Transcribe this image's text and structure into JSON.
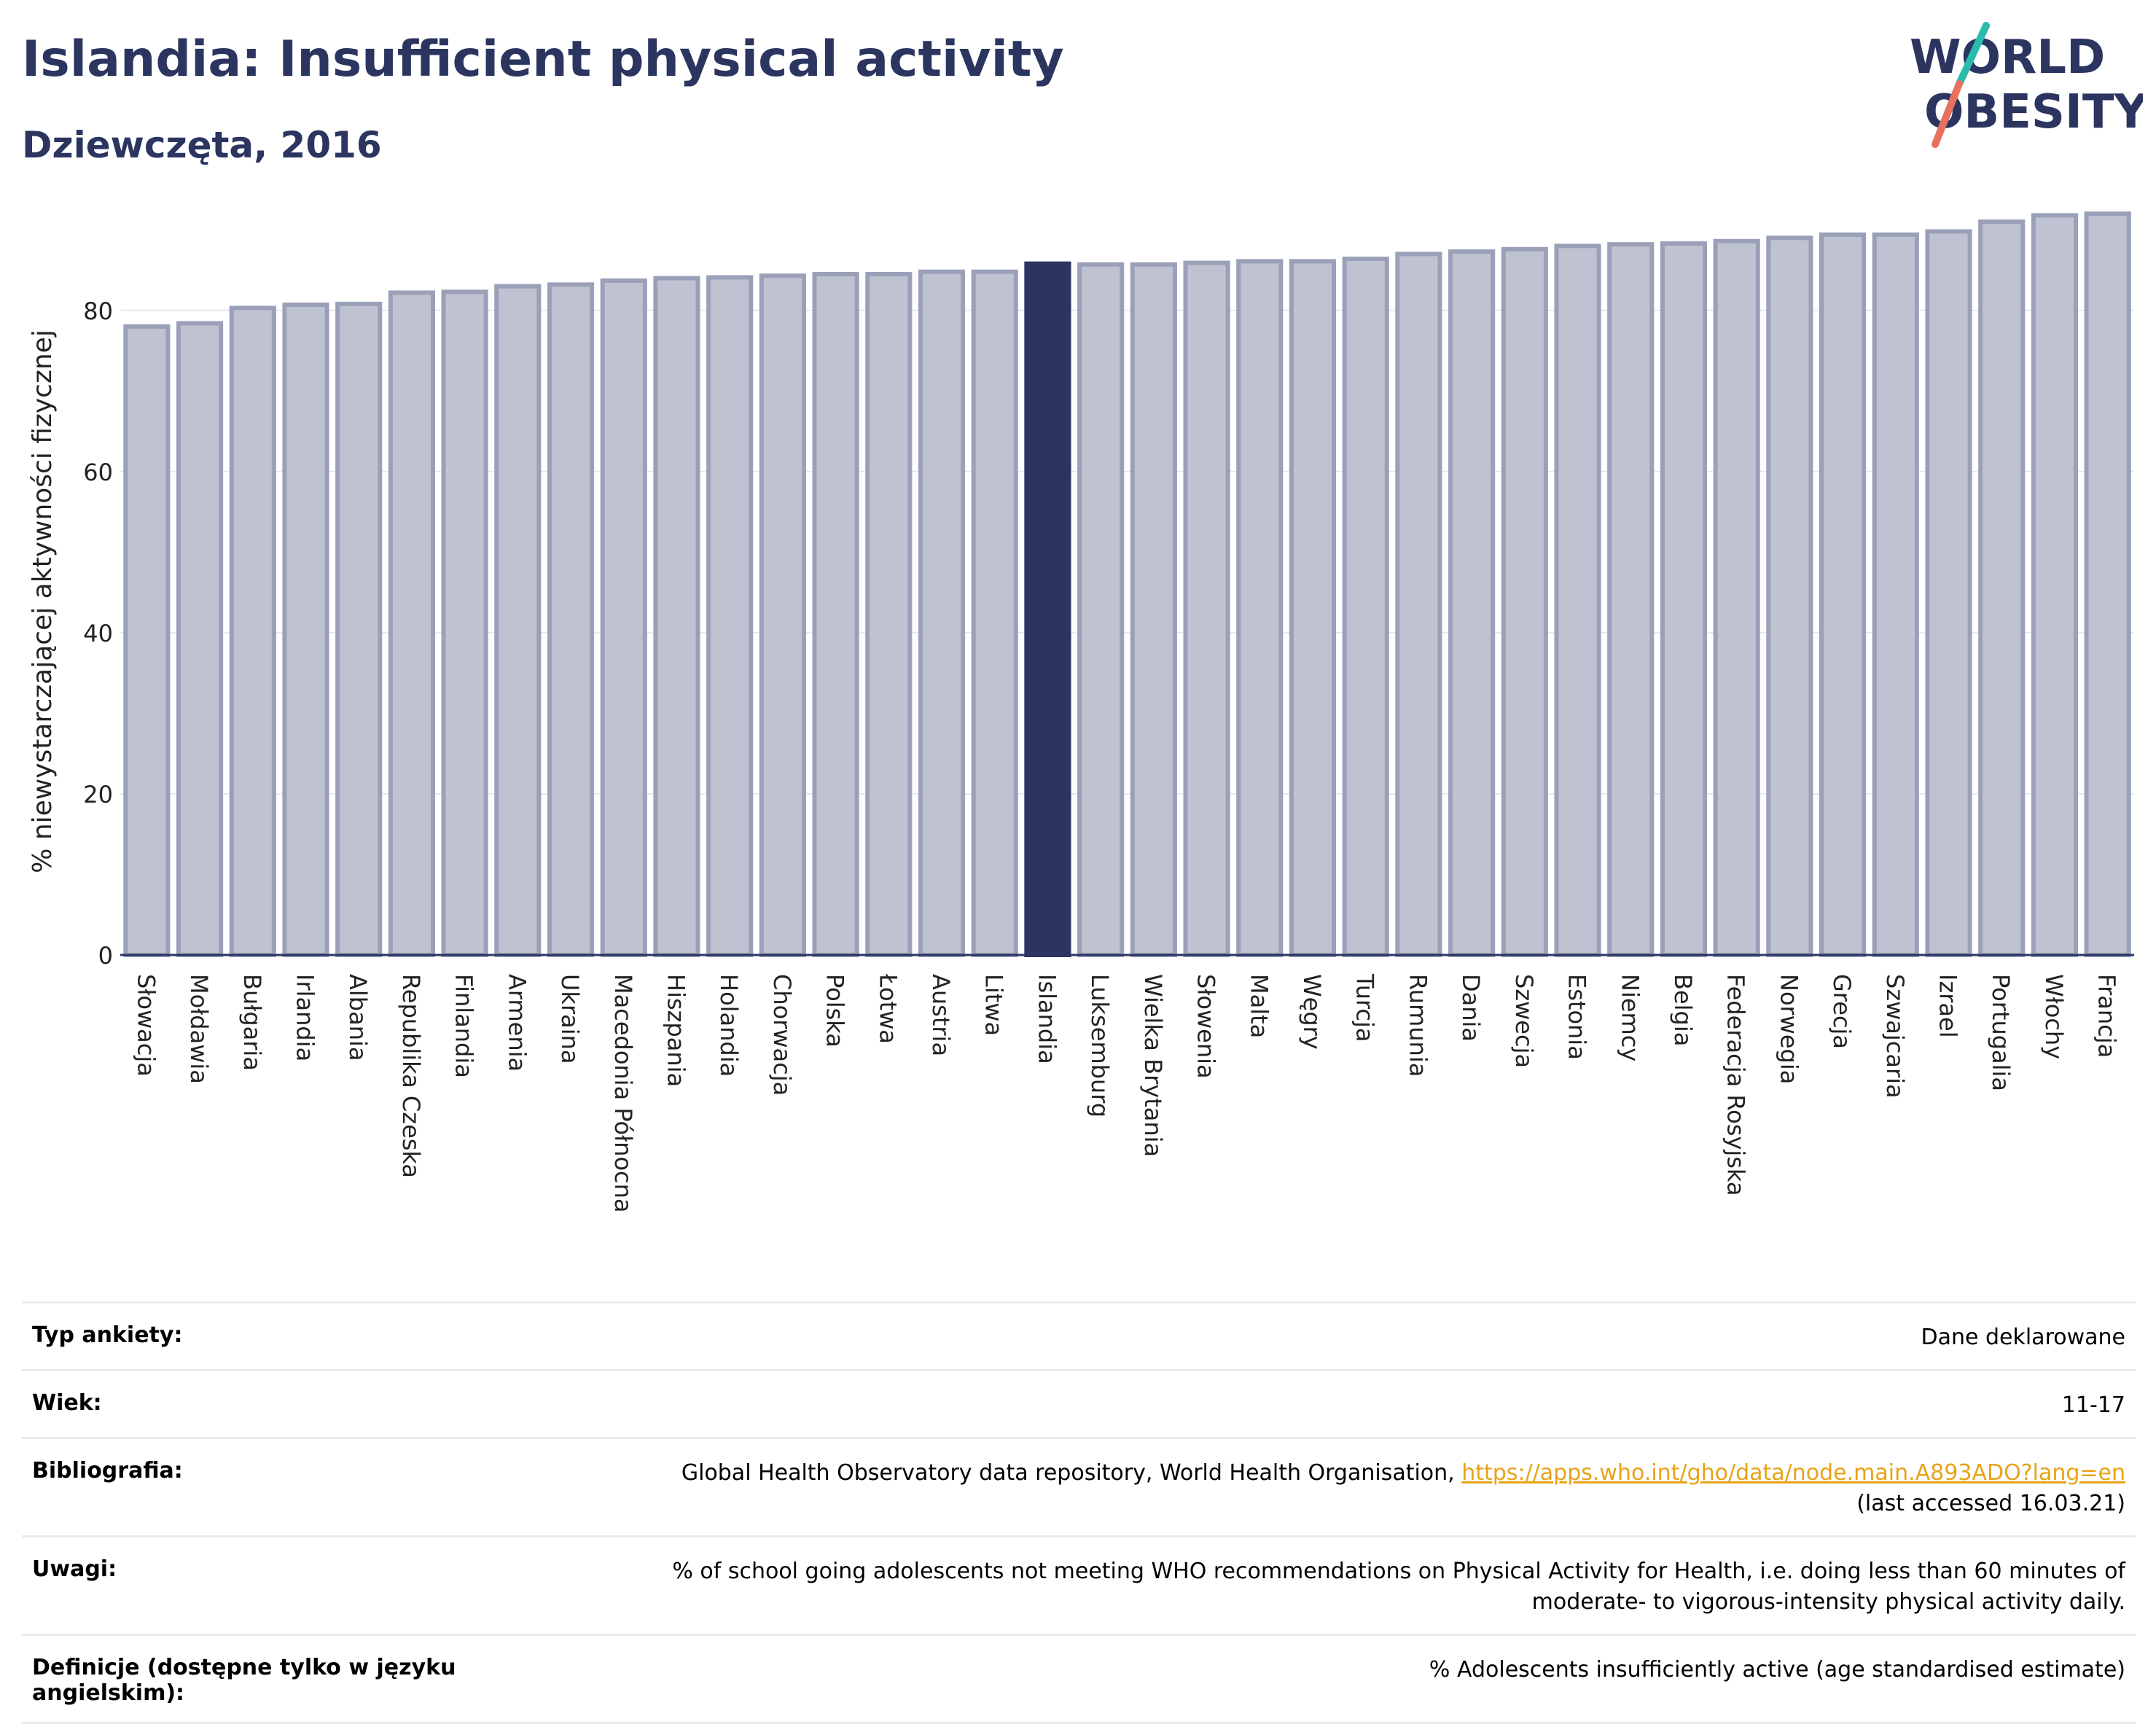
{
  "header": {
    "title": "Islandia: Insufficient physical activity",
    "subtitle": "Dziewczęta, 2016",
    "logo_line1": "WORLD",
    "logo_line2": "OBESITY"
  },
  "colors": {
    "title": "#2b3560",
    "bar_default": "#bfc2d0",
    "bar_default_stroke": "#9aa0b8",
    "bar_highlight": "#2b3560",
    "logo_slash_top": "#2bbbad",
    "logo_slash_bottom": "#e8705e",
    "link": "#e8a317"
  },
  "chart_data": {
    "type": "bar",
    "ylabel": "% niewystarczającej aktywności fizycznej",
    "ylim": [
      0,
      95
    ],
    "yticks": [
      0,
      20,
      40,
      60,
      80
    ],
    "grid": true,
    "highlight": "Islandia",
    "categories": [
      "Słowacja",
      "Mołdawia",
      "Bułgaria",
      "Irlandia",
      "Albania",
      "Republika Czeska",
      "Finlandia",
      "Armenia",
      "Ukraina",
      "Macedonia Północna",
      "Hiszpania",
      "Holandia",
      "Chorwacja",
      "Polska",
      "Łotwa",
      "Austria",
      "Litwa",
      "Islandia",
      "Luksemburg",
      "Wielka Brytania",
      "Słowenia",
      "Malta",
      "Węgry",
      "Turcja",
      "Rumunia",
      "Dania",
      "Szwecja",
      "Estonia",
      "Niemcy",
      "Belgia",
      "Federacja Rosyjska",
      "Norwegia",
      "Grecja",
      "Szwajcaria",
      "Izrael",
      "Portugalia",
      "Włochy",
      "Francja"
    ],
    "values": [
      78.0,
      78.4,
      80.3,
      80.7,
      80.8,
      82.2,
      82.3,
      83.0,
      83.2,
      83.7,
      84.0,
      84.1,
      84.3,
      84.5,
      84.5,
      84.8,
      84.8,
      85.8,
      85.7,
      85.7,
      85.9,
      86.1,
      86.1,
      86.4,
      87.0,
      87.3,
      87.6,
      88.0,
      88.2,
      88.3,
      88.6,
      89.0,
      89.4,
      89.4,
      89.8,
      91.0,
      91.8,
      92.0
    ]
  },
  "info": [
    {
      "label": "Typ ankiety:",
      "value": "Dane deklarowane"
    },
    {
      "label": "Wiek:",
      "value": "11-17"
    },
    {
      "label": "Bibliografia:",
      "value": "Global Health Observatory data repository, World Health Organisation,",
      "link": "https://apps.who.int/gho/data/node.main.A893ADO?lang=en",
      "value2": "(last accessed 16.03.21)"
    },
    {
      "label": "Uwagi:",
      "value": "% of school going adolescents not meeting WHO recommendations on Physical Activity for Health, i.e. doing less than 60 minutes of",
      "value2": "moderate- to vigorous-intensity physical activity daily."
    },
    {
      "label": "Definicje (dostępne tylko w języku angielskim):",
      "value": "% Adolescents insufficiently active (age standardised estimate)"
    }
  ]
}
